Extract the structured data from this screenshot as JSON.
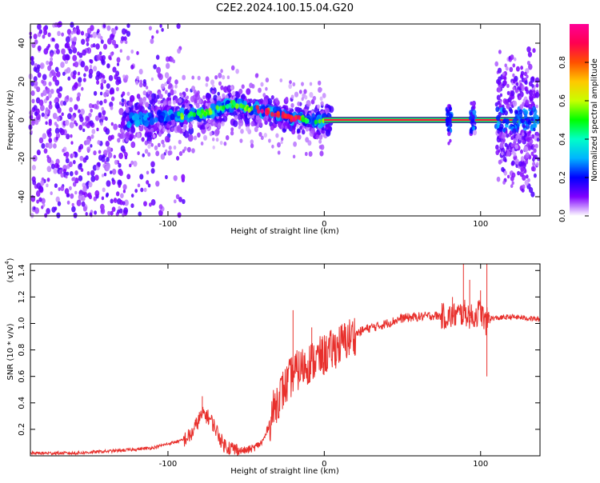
{
  "title": "C2E2.2024.100.15.04.G20",
  "chart_data": [
    {
      "type": "heatmap",
      "xlabel": "Height of straight line (km)",
      "ylabel": "Frequency (Hz)",
      "xlim": [
        -188,
        138
      ],
      "ylim": [
        -50,
        50
      ],
      "x_ticks": [
        -100,
        0,
        100
      ],
      "y_ticks": [
        -40,
        -20,
        0,
        20,
        40
      ],
      "colorbar": {
        "label": "Normalized spectral amplitude",
        "range": [
          0,
          1
        ],
        "ticks": [
          "0.0",
          "0.2",
          "0.4",
          "0.6",
          "0.8"
        ],
        "colors": [
          "#ffffff",
          "#7f00ff",
          "#0000ff",
          "#00b4ff",
          "#00ffc8",
          "#00ff00",
          "#c8ff00",
          "#ffc800",
          "#ff5000",
          "#ff0050",
          "#ff0096"
        ]
      },
      "ridge": {
        "x": [
          -125,
          -110,
          -95,
          -80,
          -70,
          -60,
          -55,
          -50,
          -45,
          -40,
          -30,
          -20,
          -10,
          0,
          135
        ],
        "freq_hz": [
          0,
          1,
          2,
          3,
          5,
          8,
          8,
          6,
          6,
          5,
          3,
          1,
          0,
          0,
          0
        ]
      },
      "noise_region_x": [
        -188,
        -100
      ],
      "bursts_x": [
        80,
        95,
        115,
        125,
        132
      ]
    },
    {
      "type": "line",
      "xlabel": "Height of straight line (km)",
      "ylabel": "SNR (10 * v/v)",
      "scale_label": "(x10",
      "scale_exp": "4",
      "xlim": [
        -188,
        138
      ],
      "ylim": [
        0,
        1.45
      ],
      "x_ticks": [
        -100,
        0,
        100
      ],
      "y_ticks": [
        0.2,
        0.4,
        0.6,
        0.8,
        1.0,
        1.2,
        1.4
      ],
      "line_color": "#e8302c",
      "series": [
        {
          "x": [
            -188,
            -160,
            -130,
            -110,
            -100,
            -90,
            -85,
            -80,
            -77,
            -75,
            -72,
            -68,
            -65,
            -60,
            -55,
            -50,
            -45,
            -40,
            -38,
            -35,
            -32,
            -30,
            -28,
            -25,
            -22,
            -20,
            -15,
            -10,
            -5,
            0,
            5,
            10,
            15,
            20,
            25,
            30,
            35,
            40,
            45,
            50,
            60,
            70,
            80,
            90,
            95,
            100,
            103,
            105,
            110,
            120,
            130,
            138
          ],
          "y": [
            0.02,
            0.02,
            0.04,
            0.06,
            0.09,
            0.12,
            0.16,
            0.28,
            0.32,
            0.3,
            0.26,
            0.17,
            0.09,
            0.06,
            0.04,
            0.04,
            0.06,
            0.1,
            0.14,
            0.25,
            0.36,
            0.42,
            0.47,
            0.52,
            0.58,
            0.62,
            0.66,
            0.7,
            0.73,
            0.76,
            0.8,
            0.84,
            0.88,
            0.92,
            0.95,
            0.97,
            0.98,
            1.0,
            1.02,
            1.04,
            1.05,
            1.06,
            1.05,
            1.08,
            1.04,
            1.1,
            1.0,
            1.04,
            1.04,
            1.05,
            1.04,
            1.03
          ]
        }
      ],
      "spikes": [
        {
          "x": -78,
          "y": 0.45
        },
        {
          "x": -20,
          "y": 1.1
        },
        {
          "x": -8,
          "y": 0.97
        },
        {
          "x": 82,
          "y": 1.2
        },
        {
          "x": 89,
          "y": 1.45
        },
        {
          "x": 93,
          "y": 1.33
        },
        {
          "x": 100,
          "y": 1.25
        },
        {
          "x": 104,
          "y": 1.45
        },
        {
          "x": 104,
          "y": 0.6
        }
      ]
    }
  ]
}
